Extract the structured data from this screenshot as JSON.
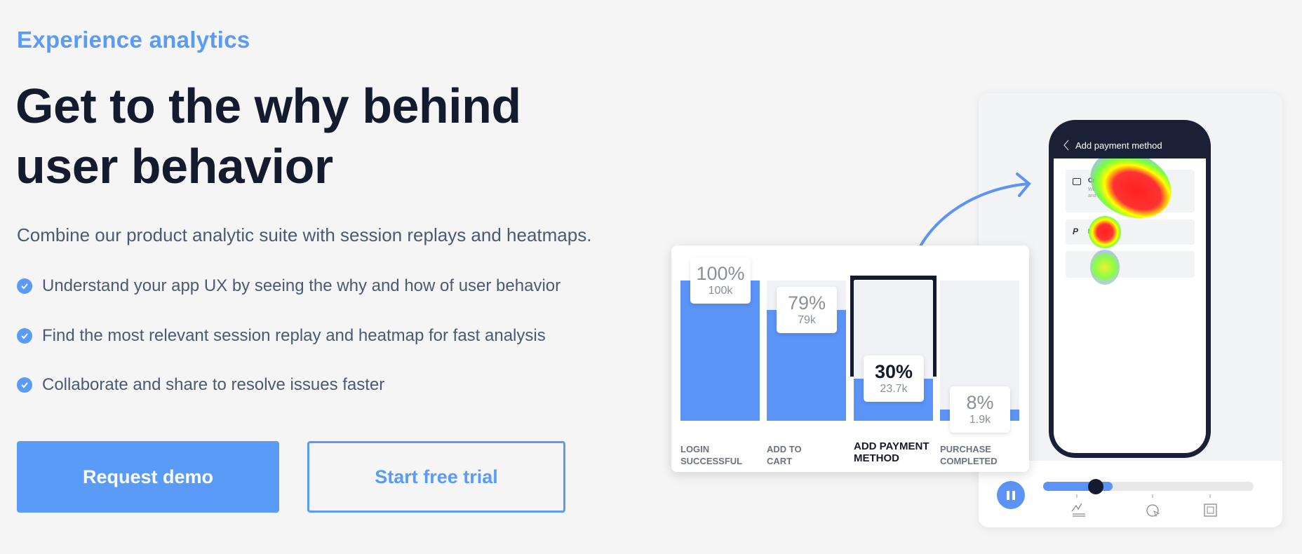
{
  "hero": {
    "eyebrow": "Experience analytics",
    "title_line1": "Get to the why behind",
    "title_line2": "user behavior",
    "subtitle": "Combine our product analytic suite with session replays and heatmaps.",
    "bullets": [
      "Understand your app UX by seeing the why and how of user behavior",
      "Find the most relevant session replay and heatmap for fast analysis",
      "Collaborate and share to resolve issues faster"
    ],
    "primary_button": "Request demo",
    "secondary_button": "Start free trial"
  },
  "phone": {
    "header": "Add payment method",
    "card_title": "Credit or Debit Card",
    "card_desc": "We support ... issued by Banco do B... and Bradesco",
    "paypal": "PayPal"
  },
  "funnel": [
    {
      "pct": "100%",
      "count": "100k",
      "label1": "LOGIN",
      "label2": "SUCCESSFUL",
      "fill": 100,
      "highlight": false
    },
    {
      "pct": "79%",
      "count": "79k",
      "label1": "ADD TO",
      "label2": "CART",
      "fill": 79,
      "highlight": false
    },
    {
      "pct": "30%",
      "count": "23.7k",
      "label1": "ADD PAYMENT",
      "label2": "METHOD",
      "fill": 30,
      "highlight": true
    },
    {
      "pct": "8%",
      "count": "1.9k",
      "label1": "PURCHASE",
      "label2": "COMPLETED",
      "fill": 8,
      "highlight": false
    }
  ],
  "player": {
    "progress": 0.33,
    "position": 0.25,
    "state": "playing"
  },
  "colors": {
    "accent": "#5b9bf8",
    "dark": "#151b2e",
    "bar": "#5b93f7"
  }
}
